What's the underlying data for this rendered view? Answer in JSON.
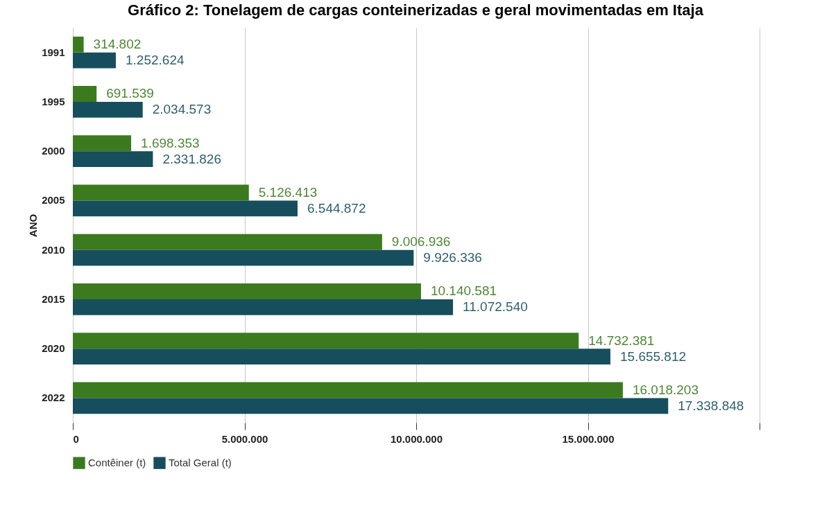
{
  "chart_data": {
    "type": "bar",
    "orientation": "horizontal",
    "title": "Gráfico 2: Tonelagem de cargas conteinerizadas e geral movimentadas em Itaja",
    "ylabel": "ANO",
    "categories": [
      "1991",
      "1995",
      "2000",
      "2005",
      "2010",
      "2015",
      "2020",
      "2022"
    ],
    "series": [
      {
        "name": "Contêiner (t)",
        "color": "#3b7a1e",
        "values": [
          314802,
          691539,
          1698353,
          5126413,
          9006936,
          10140581,
          14732381,
          16018203
        ],
        "value_labels": [
          "314.802",
          "691.539",
          "1.698.353",
          "5.126.413",
          "9.006.936",
          "10.140.581",
          "14.732.381",
          "16.018.203"
        ]
      },
      {
        "name": "Total Geral (t)",
        "color": "#164e5e",
        "values": [
          1252624,
          2034573,
          2331826,
          6544872,
          9926336,
          11072540,
          15655812,
          17338848
        ],
        "value_labels": [
          "1.252.624",
          "2.034.573",
          "2.331.826",
          "6.544.872",
          "9.926.336",
          "11.072.540",
          "15.655.812",
          "17.338.848"
        ]
      }
    ],
    "xlim": [
      0,
      20000000
    ],
    "xticks": [
      0,
      {
        "value": 5000000,
        "label": "5.000.000"
      },
      {
        "value": 10000000,
        "label": "10.000.000"
      },
      {
        "value": 15000000,
        "label": "15.000.000"
      },
      {
        "value": 20000000,
        "label": null
      }
    ],
    "grid": "x",
    "legend": "bottom"
  }
}
